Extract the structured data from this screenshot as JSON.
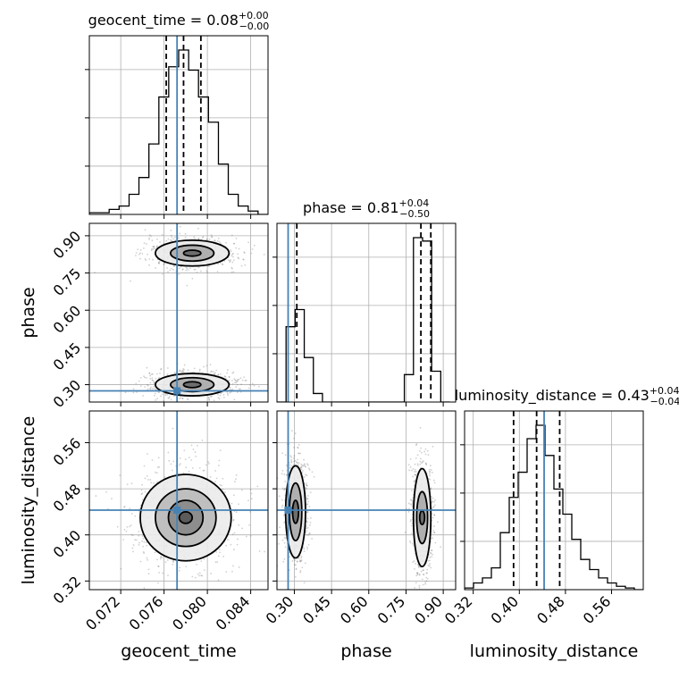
{
  "chart_data": {
    "type": "corner",
    "parameters": [
      "geocent_time",
      "phase",
      "luminosity_distance"
    ],
    "truths": {
      "geocent_time": 0.0772,
      "phase": 0.275,
      "luminosity_distance": 0.443
    },
    "quantiles": {
      "geocent_time": [
        0.0762,
        0.0778,
        0.0794
      ],
      "phase": [
        0.31,
        0.81,
        0.85
      ],
      "luminosity_distance": [
        0.39,
        0.43,
        0.47
      ]
    },
    "titles": {
      "geocent_time": {
        "main": "geocent_time = 0.08",
        "plus": "+0.00",
        "minus": "−0.00"
      },
      "phase": {
        "main": "phase = 0.81",
        "plus": "+0.04",
        "minus": "−0.50"
      },
      "luminosity_distance": {
        "main": "luminosity_distance = 0.43",
        "plus": "+0.04",
        "minus": "−0.04"
      }
    },
    "axis_labels": {
      "x": [
        "geocent_time",
        "phase",
        "luminosity_distance"
      ],
      "y": [
        "phase",
        "luminosity_distance"
      ]
    },
    "ticks": {
      "geocent_time": {
        "values": [
          0.072,
          0.076,
          0.08,
          0.084
        ],
        "labels": [
          "0.072",
          "0.076",
          "0.080",
          "0.084"
        ]
      },
      "phase": {
        "values": [
          0.3,
          0.45,
          0.6,
          0.75,
          0.9
        ],
        "labels": [
          "0.30",
          "0.45",
          "0.60",
          "0.75",
          "0.90"
        ]
      },
      "luminosity_distance": {
        "values": [
          0.32,
          0.4,
          0.48,
          0.56
        ],
        "labels": [
          "0.32",
          "0.40",
          "0.48",
          "0.56"
        ]
      }
    },
    "ranges": {
      "geocent_time": [
        0.0691,
        0.0856
      ],
      "phase": [
        0.23,
        0.95
      ],
      "luminosity_distance": [
        0.305,
        0.615
      ]
    },
    "histograms": {
      "geocent_time": {
        "edges": [
          0.0691,
          0.07002,
          0.07093,
          0.07185,
          0.07277,
          0.07368,
          0.0746,
          0.07552,
          0.07643,
          0.07735,
          0.07827,
          0.07918,
          0.0801,
          0.08102,
          0.08193,
          0.08285,
          0.08377,
          0.08468,
          0.0856
        ],
        "counts": [
          0.01,
          0.01,
          0.03,
          0.05,
          0.12,
          0.22,
          0.42,
          0.7,
          0.88,
          0.98,
          0.86,
          0.7,
          0.55,
          0.3,
          0.12,
          0.05,
          0.02,
          0.0
        ]
      },
      "phase": {
        "edges": [
          0.23,
          0.2667,
          0.3033,
          0.34,
          0.3767,
          0.4133,
          0.45,
          0.4867,
          0.5233,
          0.56,
          0.5967,
          0.6333,
          0.67,
          0.7067,
          0.7433,
          0.78,
          0.8167,
          0.8533,
          0.89,
          0.9267
        ],
        "counts": [
          0.0,
          0.44,
          0.54,
          0.26,
          0.05,
          0.0,
          0.0,
          0.0,
          0.0,
          0.0,
          0.0,
          0.0,
          0.0,
          0.0,
          0.16,
          0.96,
          0.94,
          0.18,
          0.0
        ]
      },
      "luminosity_distance": {
        "edges": [
          0.305,
          0.3205,
          0.336,
          0.3515,
          0.367,
          0.3825,
          0.398,
          0.4135,
          0.429,
          0.4445,
          0.46,
          0.4755,
          0.491,
          0.5065,
          0.522,
          0.5375,
          0.553,
          0.5685,
          0.584,
          0.5995,
          0.615
        ],
        "counts": [
          0.01,
          0.04,
          0.07,
          0.13,
          0.34,
          0.55,
          0.7,
          0.9,
          0.98,
          0.8,
          0.6,
          0.45,
          0.3,
          0.18,
          0.12,
          0.07,
          0.04,
          0.02,
          0.01,
          0.0
        ]
      }
    },
    "contour_sets": {
      "geocent_time__phase": [
        {
          "cx": 0.0786,
          "cy": 0.83,
          "rx": [
            0.0008,
            0.002,
            0.0034
          ],
          "ry": [
            0.012,
            0.032,
            0.052
          ]
        },
        {
          "cx": 0.0786,
          "cy": 0.3,
          "rx": [
            0.0008,
            0.002,
            0.0034
          ],
          "ry": [
            0.012,
            0.028,
            0.045
          ]
        }
      ],
      "geocent_time__luminosity_distance": [
        {
          "cx": 0.078,
          "cy": 0.43,
          "rx": [
            0.0006,
            0.0016,
            0.0028,
            0.0042
          ],
          "ry": [
            0.01,
            0.03,
            0.05,
            0.075
          ]
        }
      ],
      "phase__luminosity_distance": [
        {
          "cx": 0.305,
          "cy": 0.44,
          "rx": [
            0.012,
            0.025,
            0.04
          ],
          "ry": [
            0.02,
            0.05,
            0.08
          ]
        },
        {
          "cx": 0.815,
          "cy": 0.43,
          "rx": [
            0.01,
            0.022,
            0.035
          ],
          "ry": [
            0.012,
            0.045,
            0.085
          ]
        }
      ]
    },
    "colors": {
      "truth": "#4682b4",
      "contour": "#000000",
      "quantile": "#000000",
      "grid": "#b0b0b0"
    },
    "grid": true
  }
}
